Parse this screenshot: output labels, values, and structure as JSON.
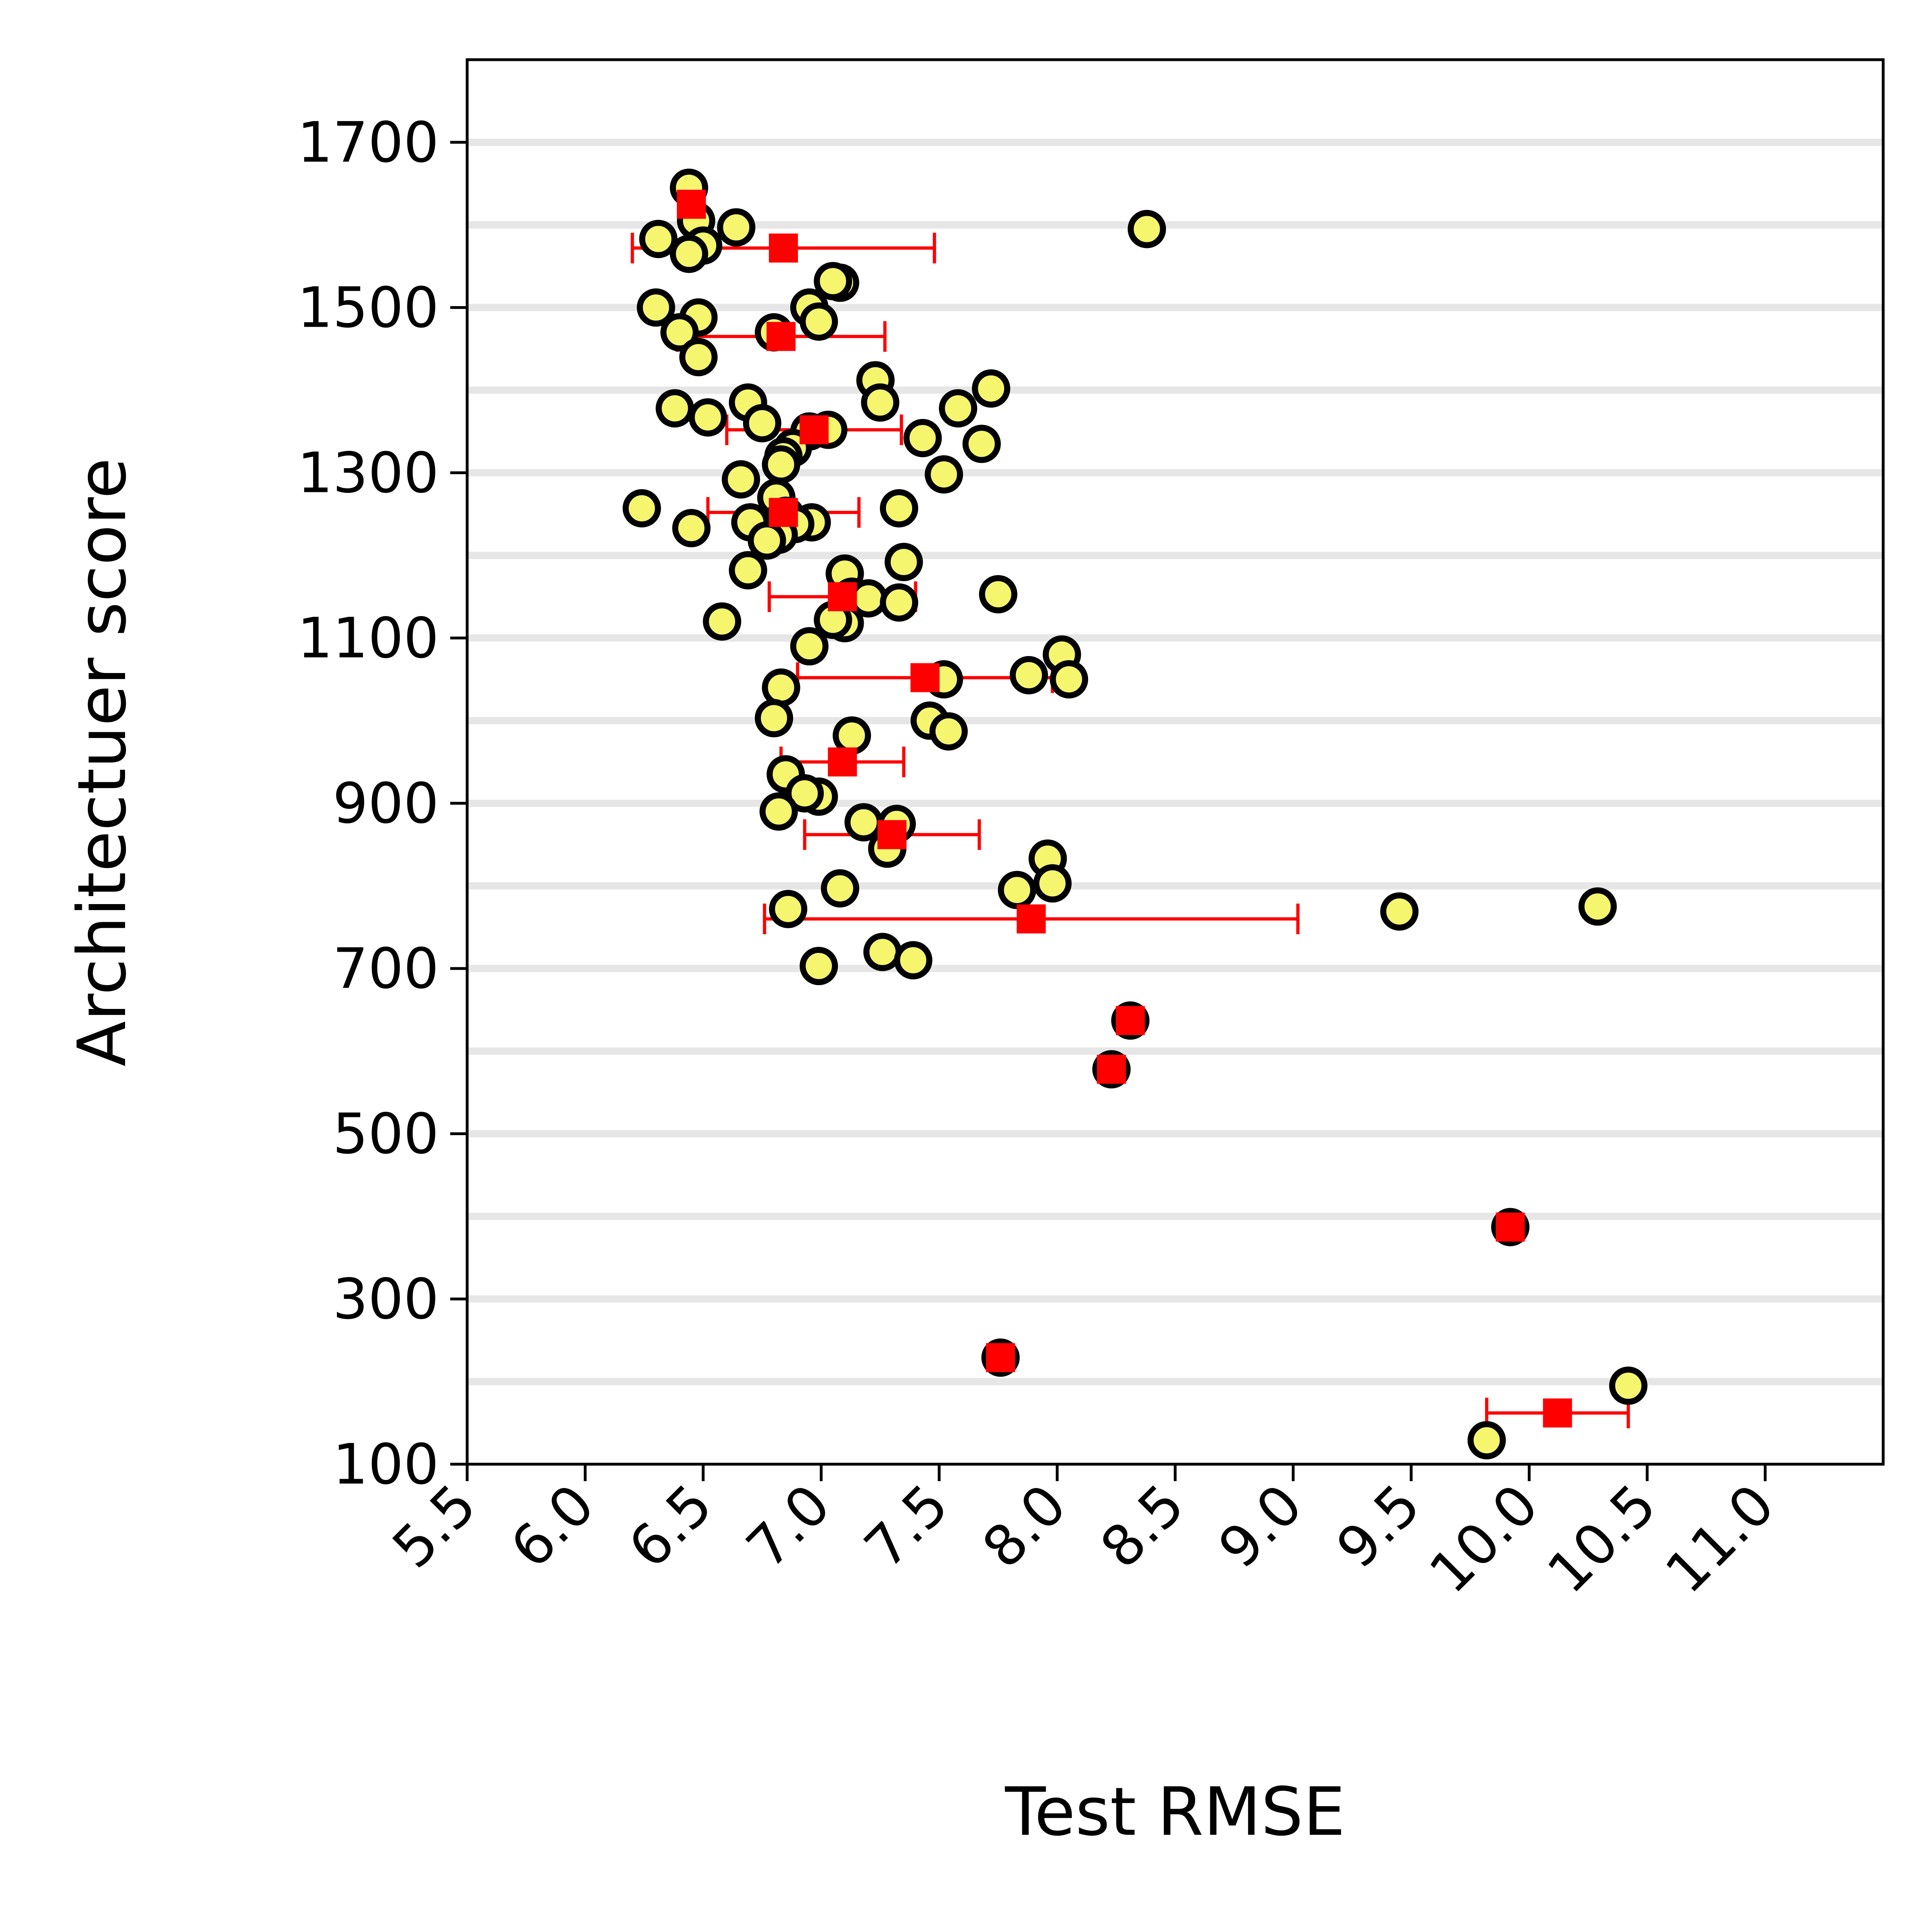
{
  "chart_data": {
    "type": "scatter",
    "xlabel": "Test RMSE",
    "ylabel": "Architectuer score",
    "xlim": [
      5.5,
      11.5
    ],
    "ylim": [
      100,
      1800
    ],
    "x_ticks": [
      "5.5",
      "6.0",
      "6.5",
      "7.0",
      "7.5",
      "8.0",
      "8.5",
      "9.0",
      "9.5",
      "10.0",
      "10.5",
      "11.0"
    ],
    "y_ticks": [
      "100",
      "300",
      "500",
      "700",
      "900",
      "1100",
      "1300",
      "1500",
      "1700"
    ],
    "grid": "horizontal lines every 100 units",
    "colors": {
      "point_fill": "#f5f56e",
      "point_edge": "#000000",
      "summary": "#ff0000",
      "grid": "#e6e6e6"
    },
    "points": [
      {
        "x": 6.44,
        "y": 1645
      },
      {
        "x": 6.47,
        "y": 1605
      },
      {
        "x": 6.64,
        "y": 1597
      },
      {
        "x": 6.31,
        "y": 1583
      },
      {
        "x": 6.5,
        "y": 1575
      },
      {
        "x": 6.44,
        "y": 1565
      },
      {
        "x": 8.38,
        "y": 1595
      },
      {
        "x": 7.08,
        "y": 1530
      },
      {
        "x": 7.05,
        "y": 1532
      },
      {
        "x": 6.3,
        "y": 1500
      },
      {
        "x": 6.48,
        "y": 1488
      },
      {
        "x": 6.95,
        "y": 1500
      },
      {
        "x": 6.99,
        "y": 1483
      },
      {
        "x": 6.8,
        "y": 1470
      },
      {
        "x": 6.4,
        "y": 1470
      },
      {
        "x": 6.48,
        "y": 1440
      },
      {
        "x": 7.23,
        "y": 1412
      },
      {
        "x": 7.72,
        "y": 1402
      },
      {
        "x": 7.25,
        "y": 1385
      },
      {
        "x": 6.69,
        "y": 1385
      },
      {
        "x": 7.58,
        "y": 1378
      },
      {
        "x": 6.38,
        "y": 1378
      },
      {
        "x": 6.52,
        "y": 1367
      },
      {
        "x": 6.75,
        "y": 1360
      },
      {
        "x": 6.95,
        "y": 1350
      },
      {
        "x": 7.03,
        "y": 1352
      },
      {
        "x": 7.43,
        "y": 1342
      },
      {
        "x": 7.68,
        "y": 1335
      },
      {
        "x": 6.88,
        "y": 1330
      },
      {
        "x": 6.84,
        "y": 1320
      },
      {
        "x": 6.83,
        "y": 1310
      },
      {
        "x": 7.52,
        "y": 1298
      },
      {
        "x": 6.66,
        "y": 1292
      },
      {
        "x": 6.81,
        "y": 1270
      },
      {
        "x": 6.24,
        "y": 1257
      },
      {
        "x": 7.33,
        "y": 1257
      },
      {
        "x": 6.85,
        "y": 1248
      },
      {
        "x": 6.96,
        "y": 1240
      },
      {
        "x": 6.7,
        "y": 1240
      },
      {
        "x": 6.89,
        "y": 1238
      },
      {
        "x": 6.45,
        "y": 1233
      },
      {
        "x": 6.82,
        "y": 1225
      },
      {
        "x": 6.77,
        "y": 1218
      },
      {
        "x": 7.35,
        "y": 1192
      },
      {
        "x": 6.69,
        "y": 1182
      },
      {
        "x": 7.1,
        "y": 1178
      },
      {
        "x": 7.75,
        "y": 1153
      },
      {
        "x": 7.13,
        "y": 1150
      },
      {
        "x": 7.2,
        "y": 1148
      },
      {
        "x": 7.33,
        "y": 1143
      },
      {
        "x": 7.1,
        "y": 1118
      },
      {
        "x": 7.05,
        "y": 1122
      },
      {
        "x": 6.58,
        "y": 1120
      },
      {
        "x": 6.95,
        "y": 1090
      },
      {
        "x": 8.02,
        "y": 1080
      },
      {
        "x": 7.52,
        "y": 1050
      },
      {
        "x": 8.05,
        "y": 1050
      },
      {
        "x": 7.88,
        "y": 1055
      },
      {
        "x": 6.83,
        "y": 1040
      },
      {
        "x": 6.8,
        "y": 1003
      },
      {
        "x": 7.46,
        "y": 1000
      },
      {
        "x": 7.54,
        "y": 987
      },
      {
        "x": 7.13,
        "y": 982
      },
      {
        "x": 6.85,
        "y": 935
      },
      {
        "x": 6.99,
        "y": 908
      },
      {
        "x": 6.93,
        "y": 912
      },
      {
        "x": 6.82,
        "y": 890
      },
      {
        "x": 7.32,
        "y": 875
      },
      {
        "x": 7.18,
        "y": 877
      },
      {
        "x": 7.28,
        "y": 845
      },
      {
        "x": 7.96,
        "y": 833
      },
      {
        "x": 7.98,
        "y": 803
      },
      {
        "x": 7.83,
        "y": 795
      },
      {
        "x": 7.08,
        "y": 797
      },
      {
        "x": 6.86,
        "y": 772
      },
      {
        "x": 9.45,
        "y": 769
      },
      {
        "x": 10.29,
        "y": 775
      },
      {
        "x": 7.26,
        "y": 720
      },
      {
        "x": 7.39,
        "y": 710
      },
      {
        "x": 6.99,
        "y": 703
      },
      {
        "x": 8.31,
        "y": 637
      },
      {
        "x": 8.23,
        "y": 578
      },
      {
        "x": 9.92,
        "y": 387
      },
      {
        "x": 7.76,
        "y": 229
      },
      {
        "x": 10.42,
        "y": 195
      },
      {
        "x": 9.82,
        "y": 129
      }
    ],
    "summary": [
      {
        "x": 6.45,
        "y": 1625,
        "err": 0
      },
      {
        "x": 6.84,
        "y": 1572,
        "err": 0.64
      },
      {
        "x": 6.83,
        "y": 1465,
        "err": 0.44
      },
      {
        "x": 6.97,
        "y": 1352,
        "err": 0.37
      },
      {
        "x": 6.84,
        "y": 1252,
        "err": 0.32
      },
      {
        "x": 7.09,
        "y": 1150,
        "err": 0.31
      },
      {
        "x": 7.44,
        "y": 1052,
        "err": 0.54
      },
      {
        "x": 7.09,
        "y": 950,
        "err": 0.26
      },
      {
        "x": 7.3,
        "y": 862,
        "err": 0.37
      },
      {
        "x": 7.89,
        "y": 760,
        "err": 1.13
      },
      {
        "x": 8.31,
        "y": 637,
        "err": 0
      },
      {
        "x": 8.23,
        "y": 578,
        "err": 0
      },
      {
        "x": 9.92,
        "y": 387,
        "err": 0
      },
      {
        "x": 7.76,
        "y": 229,
        "err": 0
      },
      {
        "x": 10.12,
        "y": 162,
        "err": 0.3
      }
    ]
  }
}
